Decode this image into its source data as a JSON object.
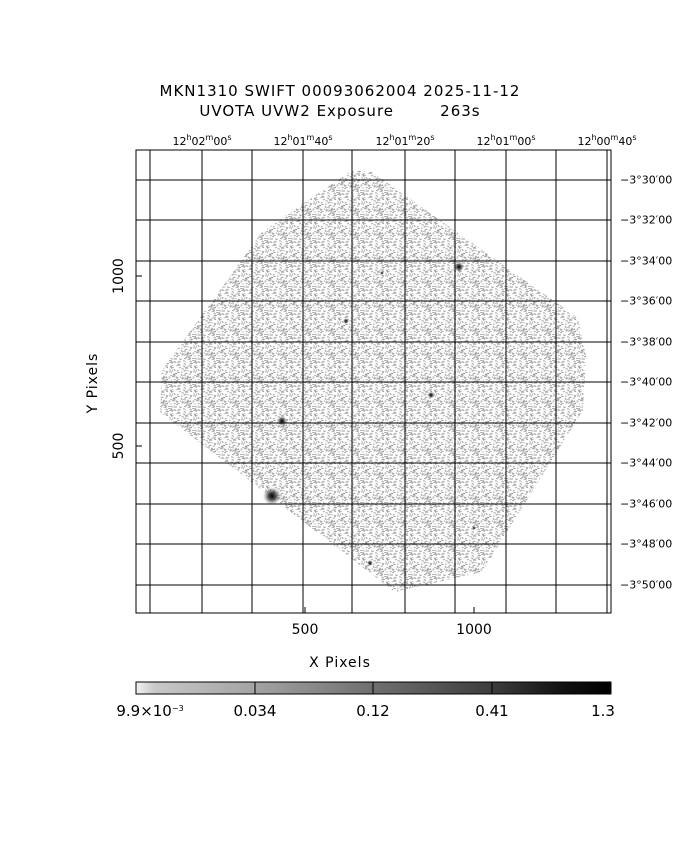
{
  "title": {
    "line1": "MKN1310 SWIFT 00093062004 2025-11-12",
    "line2": "UVOTA UVW2 Exposure        263s"
  },
  "ra_ticks": [
    {
      "h": "12",
      "m": "02",
      "s": "00"
    },
    {
      "h": "12",
      "m": "01",
      "s": "40"
    },
    {
      "h": "12",
      "m": "01",
      "s": "20"
    },
    {
      "h": "12",
      "m": "01",
      "s": "00"
    },
    {
      "h": "12",
      "m": "00",
      "s": "40"
    }
  ],
  "dec_ticks": [
    "−3°30′00",
    "−3°32′00",
    "−3°34′00",
    "−3°36′00",
    "−3°38′00",
    "−3°40′00",
    "−3°42′00",
    "−3°44′00",
    "−3°46′00",
    "−3°48′00",
    "−3°50′00"
  ],
  "x_pixel_ticks": [
    "500",
    "1000"
  ],
  "y_pixel_ticks": [
    "1000",
    "500"
  ],
  "x_axis_label": "X Pixels",
  "y_axis_label": "Y Pixels",
  "colorbar": {
    "labels": [
      "9.9×10",
      "0.034",
      "0.12",
      "0.41",
      "1.3"
    ],
    "first_exponent": "−3"
  },
  "colors": {
    "background": "#ffffff",
    "noise": "#a6a6a6",
    "grid": "#000000"
  },
  "sources": [
    {
      "name": "bright-source-lower-left",
      "strength": "bright"
    },
    {
      "name": "source-left-middle",
      "strength": "medium"
    },
    {
      "name": "source-upper-right",
      "strength": "medium"
    },
    {
      "name": "source-center-right",
      "strength": "faint"
    },
    {
      "name": "source-bottom",
      "strength": "faint"
    }
  ]
}
